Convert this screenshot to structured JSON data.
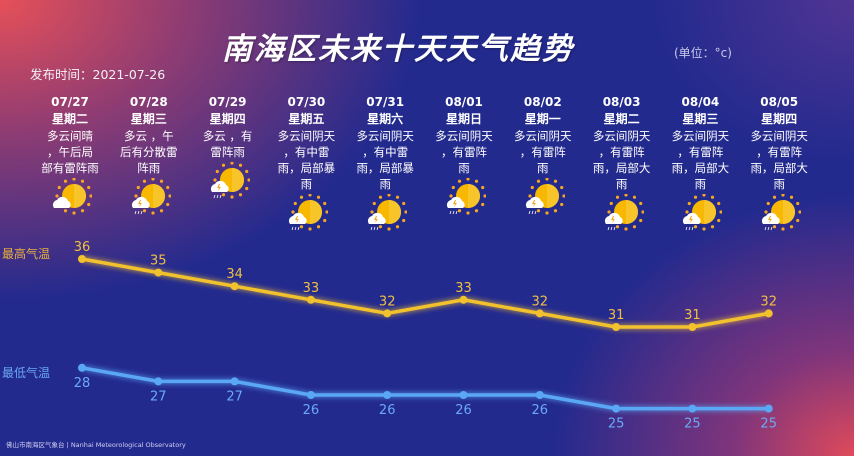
{
  "header": {
    "title": "南海区未来十天天气趋势",
    "unit": "(单位：°c)",
    "published": "发布时间：2021-07-26"
  },
  "days": [
    {
      "date": "07/27",
      "weekday": "星期二",
      "desc": [
        "多云间晴",
        "，午后局",
        "部有雷阵雨"
      ],
      "icon": "partly-cloudy-icon",
      "high": 36,
      "low": 28
    },
    {
      "date": "07/28",
      "weekday": "星期三",
      "desc": [
        "多云 ，午",
        "后有分散雷",
        "阵雨"
      ],
      "icon": "thunder-shower-icon",
      "high": 35,
      "low": 27
    },
    {
      "date": "07/29",
      "weekday": "星期四",
      "desc": [
        "多云 ，有",
        "雷阵雨"
      ],
      "icon": "thunder-shower-icon",
      "high": 34,
      "low": 27
    },
    {
      "date": "07/30",
      "weekday": "星期五",
      "desc": [
        "多云间阴天",
        "，有中雷",
        "雨，局部暴",
        "雨"
      ],
      "icon": "thunder-shower-icon",
      "high": 33,
      "low": 26
    },
    {
      "date": "07/31",
      "weekday": "星期六",
      "desc": [
        "多云间阴天",
        "，有中雷",
        "雨，局部暴",
        "雨"
      ],
      "icon": "thunder-shower-icon",
      "high": 32,
      "low": 26
    },
    {
      "date": "08/01",
      "weekday": "星期日",
      "desc": [
        "多云间阴天",
        "，有雷阵",
        "雨"
      ],
      "icon": "thunder-shower-icon",
      "high": 33,
      "low": 26
    },
    {
      "date": "08/02",
      "weekday": "星期一",
      "desc": [
        "多云间阴天",
        "，有雷阵",
        "雨"
      ],
      "icon": "thunder-shower-icon",
      "high": 32,
      "low": 26
    },
    {
      "date": "08/03",
      "weekday": "星期二",
      "desc": [
        "多云间阴天",
        "，有雷阵",
        "雨，局部大",
        "雨"
      ],
      "icon": "thunder-shower-icon",
      "high": 31,
      "low": 25
    },
    {
      "date": "08/04",
      "weekday": "星期三",
      "desc": [
        "多云间阴天",
        "，有雷阵",
        "雨，局部大",
        "雨"
      ],
      "icon": "thunder-shower-icon",
      "high": 31,
      "low": 25
    },
    {
      "date": "08/05",
      "weekday": "星期四",
      "desc": [
        "多云间阴天",
        "，有雷阵",
        "雨，局部大",
        "雨"
      ],
      "icon": "thunder-shower-icon",
      "high": 32,
      "low": 25
    }
  ],
  "chart_data": {
    "type": "line",
    "categories": [
      "07/27",
      "07/28",
      "07/29",
      "07/30",
      "07/31",
      "08/01",
      "08/02",
      "08/03",
      "08/04",
      "08/05"
    ],
    "series": [
      {
        "name": "最高气温",
        "values": [
          36,
          35,
          34,
          33,
          32,
          33,
          32,
          31,
          31,
          32
        ],
        "color": "#f2c12e"
      },
      {
        "name": "最低气温",
        "values": [
          28,
          27,
          27,
          26,
          26,
          26,
          26,
          25,
          25,
          25
        ],
        "color": "#5aa8f5"
      }
    ]
  },
  "footer": "佛山市南海区气象台 | Nanhai Meteorological Observatory"
}
